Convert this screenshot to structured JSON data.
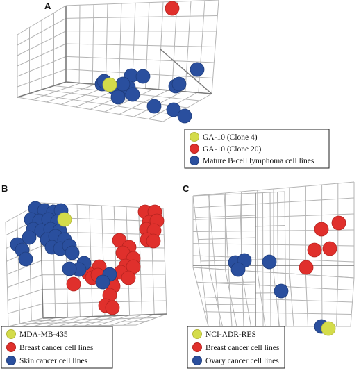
{
  "colors": {
    "yellow": "#d4dc4a",
    "red": "#e0302c",
    "blue": "#2a4f9e",
    "grid": "#b4b4b4",
    "axis": "#7a7a7a"
  },
  "chart_data": [
    {
      "type": "scatter",
      "panel_label": "A",
      "legend_position": "bottom-right",
      "series": [
        {
          "name": "GA-10 (Clone 4)",
          "color_key": "yellow",
          "points": [
            [
              158,
              122
            ]
          ]
        },
        {
          "name": "GA-10 (Clone 20)",
          "color_key": "red",
          "points": [
            [
              248,
              12
            ]
          ]
        },
        {
          "name": "Mature B-cell lymphoma cell lines",
          "color_key": "blue",
          "points": [
            [
              147,
              121
            ],
            [
              165,
              127
            ],
            [
              180,
              130
            ],
            [
              189,
              109
            ],
            [
              206,
              110
            ],
            [
              185,
              126
            ],
            [
              191,
              136
            ],
            [
              170,
              140
            ],
            [
              177,
              121
            ],
            [
              253,
              124
            ],
            [
              258,
              121
            ],
            [
              284,
              100
            ],
            [
              222,
              153
            ],
            [
              250,
              158
            ],
            [
              266,
              167
            ],
            [
              150,
              117
            ]
          ]
        }
      ]
    },
    {
      "type": "scatter",
      "panel_label": "B",
      "legend_position": "bottom-left",
      "series": [
        {
          "name": "MDA-MB-435",
          "color_key": "yellow",
          "points": [
            [
              93,
              316
            ]
          ]
        },
        {
          "name": "Breast cancer cell lines",
          "color_key": "red",
          "points": [
            [
              209,
              305
            ],
            [
              223,
              305
            ],
            [
              215,
              320
            ],
            [
              226,
              318
            ],
            [
              211,
              330
            ],
            [
              222,
              332
            ],
            [
              212,
              345
            ],
            [
              172,
              346
            ],
            [
              186,
              356
            ],
            [
              177,
              364
            ],
            [
              192,
              372
            ],
            [
              181,
              383
            ],
            [
              192,
              384
            ],
            [
              174,
              392
            ],
            [
              185,
              400
            ],
            [
              160,
              404
            ],
            [
              163,
              412
            ],
            [
              143,
              384
            ],
            [
              127,
              393
            ],
            [
              133,
              400
            ],
            [
              141,
              396
            ],
            [
              106,
              409
            ],
            [
              158,
              425
            ],
            [
              152,
              440
            ],
            [
              162,
              443
            ],
            [
              221,
              347
            ]
          ]
        },
        {
          "name": "Skin cancer cell lines",
          "color_key": "blue",
          "points": [
            [
              51,
              300
            ],
            [
              64,
              303
            ],
            [
              77,
              305
            ],
            [
              88,
              303
            ],
            [
              45,
              316
            ],
            [
              57,
              318
            ],
            [
              70,
              316
            ],
            [
              83,
              319
            ],
            [
              48,
              330
            ],
            [
              60,
              332
            ],
            [
              73,
              330
            ],
            [
              86,
              332
            ],
            [
              68,
              345
            ],
            [
              80,
              340
            ],
            [
              93,
              345
            ],
            [
              75,
              356
            ],
            [
              87,
              358
            ],
            [
              100,
              354
            ],
            [
              104,
              364
            ],
            [
              25,
              352
            ],
            [
              32,
              360
            ],
            [
              37,
              373
            ],
            [
              121,
              379
            ],
            [
              114,
              388
            ],
            [
              100,
              387
            ],
            [
              158,
              395
            ],
            [
              148,
              406
            ],
            [
              42,
              342
            ]
          ]
        }
      ]
    },
    {
      "type": "scatter",
      "panel_label": "C",
      "legend_position": "bottom-left",
      "series": [
        {
          "name": "NCI-ADR-RES",
          "color_key": "yellow",
          "points": [
            [
              473,
              473
            ]
          ]
        },
        {
          "name": "Breast cancer cell lines",
          "color_key": "red",
          "points": [
            [
              463,
              330
            ],
            [
              488,
              321
            ],
            [
              453,
              360
            ],
            [
              475,
              358
            ],
            [
              441,
              385
            ]
          ]
        },
        {
          "name": "Ovary cancer cell lines",
          "color_key": "blue",
          "points": [
            [
              339,
              378
            ],
            [
              352,
              375
            ],
            [
              343,
              388
            ],
            [
              388,
              377
            ],
            [
              405,
              419
            ],
            [
              463,
              470
            ]
          ]
        }
      ]
    }
  ]
}
